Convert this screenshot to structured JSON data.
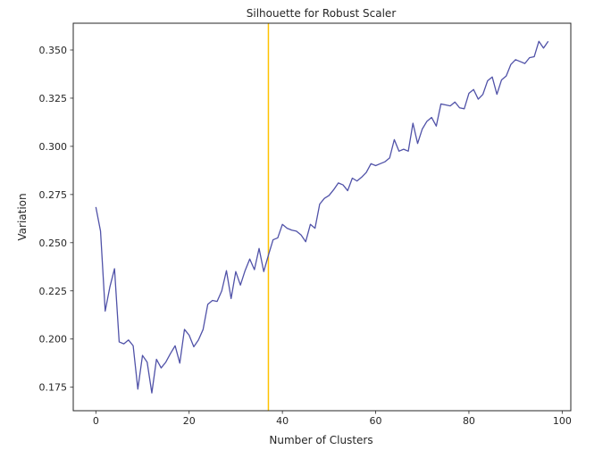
{
  "chart_data": {
    "type": "line",
    "title": "Silhouette for Robust Scaler",
    "xlabel": "Number of Clusters",
    "ylabel": "Variation",
    "xlim": [
      -4.85,
      101.85
    ],
    "ylim": [
      0.1628,
      0.3639
    ],
    "xticks": [
      0,
      20,
      40,
      60,
      80,
      100
    ],
    "yticks": [
      0.175,
      0.2,
      0.225,
      0.25,
      0.275,
      0.3,
      0.325,
      0.35
    ],
    "ytick_labels": [
      "0.175",
      "0.200",
      "0.225",
      "0.250",
      "0.275",
      "0.300",
      "0.325",
      "0.350"
    ],
    "grid": false,
    "line_color": "#5052a8",
    "vline": {
      "x": 37,
      "color": "#ffc200"
    },
    "series": [
      {
        "x": [
          0,
          1,
          2,
          3,
          4,
          5,
          6,
          7,
          8,
          9,
          10,
          11,
          12,
          13,
          14,
          15,
          16,
          17,
          18,
          19,
          20,
          21,
          22,
          23,
          24,
          25,
          26,
          27,
          28,
          29,
          30,
          31,
          32,
          33,
          34,
          35,
          36,
          37,
          38,
          39,
          40,
          41,
          42,
          43,
          44,
          45,
          46,
          47,
          48,
          49,
          50,
          51,
          52,
          53,
          54,
          55,
          56,
          57,
          58,
          59,
          60,
          61,
          62,
          63,
          64,
          65,
          66,
          67,
          68,
          69,
          70,
          71,
          72,
          73,
          74,
          75,
          76,
          77,
          78,
          79,
          80,
          81,
          82,
          83,
          84,
          85,
          86,
          87,
          88,
          89,
          90,
          91,
          92,
          93,
          94,
          95,
          96,
          97
        ],
        "values": [
          0.2685,
          0.256,
          0.2145,
          0.227,
          0.2365,
          0.1985,
          0.1975,
          0.1995,
          0.1965,
          0.174,
          0.1915,
          0.188,
          0.172,
          0.1895,
          0.185,
          0.188,
          0.1925,
          0.1965,
          0.1875,
          0.205,
          0.202,
          0.196,
          0.1995,
          0.205,
          0.218,
          0.22,
          0.2195,
          0.225,
          0.2355,
          0.221,
          0.235,
          0.228,
          0.2355,
          0.2415,
          0.236,
          0.247,
          0.235,
          0.2435,
          0.2515,
          0.2525,
          0.2595,
          0.2575,
          0.2565,
          0.256,
          0.254,
          0.2505,
          0.2595,
          0.2575,
          0.27,
          0.273,
          0.2745,
          0.2775,
          0.281,
          0.28,
          0.277,
          0.2835,
          0.282,
          0.284,
          0.2865,
          0.291,
          0.29,
          0.291,
          0.292,
          0.294,
          0.3035,
          0.2975,
          0.2985,
          0.2975,
          0.312,
          0.3015,
          0.309,
          0.313,
          0.315,
          0.3105,
          0.322,
          0.3215,
          0.321,
          0.323,
          0.32,
          0.3195,
          0.3275,
          0.3295,
          0.3245,
          0.327,
          0.334,
          0.336,
          0.327,
          0.3345,
          0.3365,
          0.3425,
          0.345,
          0.344,
          0.343,
          0.346,
          0.3465,
          0.3545,
          0.351,
          0.3545
        ]
      }
    ]
  }
}
